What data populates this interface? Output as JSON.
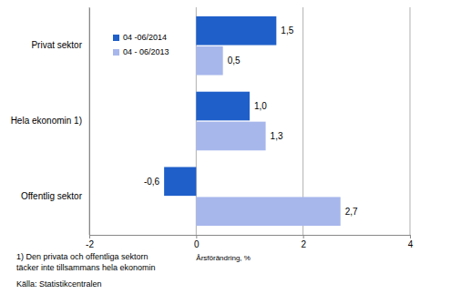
{
  "chart_data": {
    "type": "bar",
    "orientation": "horizontal",
    "categories": [
      "Privat sektor",
      "Hela ekonomin 1)",
      "Offentlig sektor"
    ],
    "series": [
      {
        "name": "04 -06/2014",
        "color": "#1f5fc9",
        "values": [
          1.5,
          1.0,
          -0.6
        ],
        "value_labels": [
          "1,5",
          "1,0",
          "-0,6"
        ]
      },
      {
        "name": "04 - 06/2013",
        "color": "#a7b7ec",
        "values": [
          0.5,
          1.3,
          2.7
        ],
        "value_labels": [
          "0,5",
          "1,3",
          "2,7"
        ]
      }
    ],
    "xlabel": "Årsförändring, %",
    "xlim": [
      -2,
      4
    ],
    "xticks": [
      -2,
      0,
      2,
      4
    ],
    "grid": true,
    "legend": "upper left",
    "data_labels": true,
    "annotations": [
      "1) Den privata och offentliga sektorn",
      "täcker inte tillsammans hela ekonomin",
      "Källa: Statistikcentralen"
    ]
  }
}
